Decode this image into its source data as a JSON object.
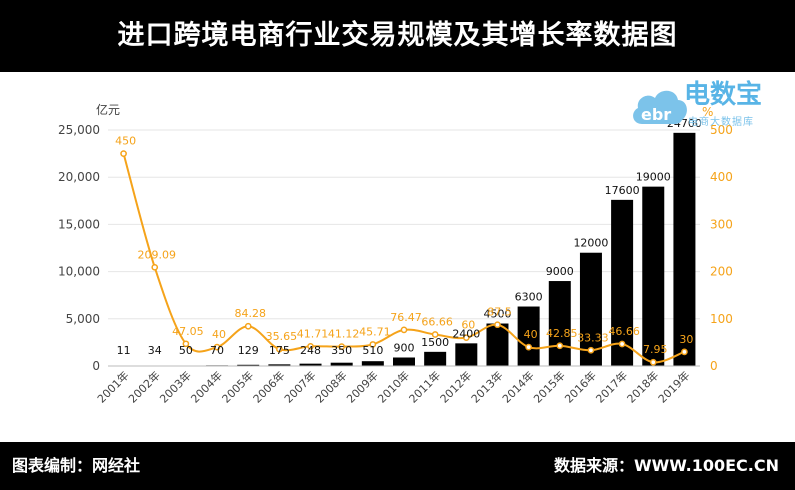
{
  "title": "进口跨境电商行业交易规模及其增长率数据图",
  "footer": {
    "left": "图表编制：网经社",
    "right": "数据来源：WWW.100EC.CN"
  },
  "logo": {
    "name": "电数宝",
    "sub": "电商大数据库",
    "mark_text": "ebr"
  },
  "colors": {
    "header": "#000000",
    "bar": "#000000",
    "line": "#f5a31a",
    "axis_right": "#f5a31a",
    "logo": "#58b4e6"
  },
  "chart_data": {
    "type": "bar",
    "title": "进口跨境电商行业交易规模及其增长率数据图",
    "categories": [
      "2001年",
      "2002年",
      "2003年",
      "2004年",
      "2005年",
      "2006年",
      "2007年",
      "2008年",
      "2009年",
      "2010年",
      "2011年",
      "2012年",
      "2013年",
      "2014年",
      "2015年",
      "2016年",
      "2017年",
      "2018年",
      "2019年"
    ],
    "series": [
      {
        "type": "bar",
        "axis": "left",
        "values": [
          11,
          34,
          50,
          70,
          129,
          175,
          248,
          350,
          510,
          900,
          1500,
          2400,
          4500,
          6300,
          9000,
          12000,
          17600,
          19000,
          24700
        ],
        "labels": [
          "11",
          "34",
          "50",
          "70",
          "129",
          "175",
          "248",
          "350",
          "510",
          "900",
          "1500",
          "2400",
          "4500",
          "6300",
          "9000",
          "12000",
          "17600",
          "19000",
          "24700"
        ]
      },
      {
        "type": "line",
        "axis": "right",
        "values": [
          450,
          209.09,
          47.05,
          40,
          84.28,
          35.65,
          41.71,
          41.12,
          45.71,
          76.47,
          66.66,
          60,
          87.5,
          40,
          42.85,
          33.33,
          46.66,
          7.95,
          30
        ],
        "labels": [
          "450",
          "209.09",
          "47.05",
          "40",
          "84.28",
          "35.65",
          "41.71",
          "41.12",
          "45.71",
          "76.47",
          "66.66",
          "60",
          "87.5",
          "40",
          "42.85",
          "33.33",
          "46.66",
          "7.95",
          "30"
        ]
      }
    ],
    "y_left": {
      "unit": "亿元",
      "ylim": [
        0,
        25000
      ],
      "ticks": [
        0,
        5000,
        10000,
        15000,
        20000,
        25000
      ],
      "tick_labels": [
        "0",
        "5,000",
        "10,000",
        "15,000",
        "20,000",
        "25,000"
      ]
    },
    "y_right": {
      "unit": "%",
      "ylim": [
        0,
        500
      ],
      "ticks": [
        0,
        100,
        200,
        300,
        400,
        500
      ],
      "tick_labels": [
        "0",
        "100",
        "200",
        "300",
        "400",
        "500"
      ]
    },
    "grid": true
  }
}
